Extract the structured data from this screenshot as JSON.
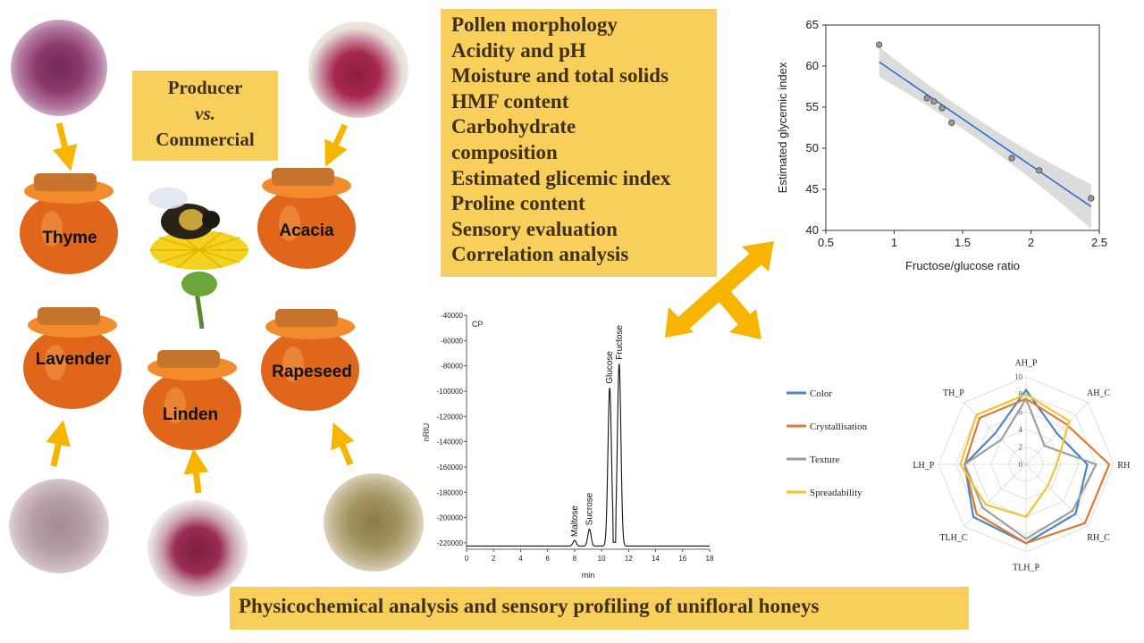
{
  "producer_box": {
    "line1": "Producer",
    "line2": "vs.",
    "line3": "Commercial"
  },
  "analyses": [
    "Pollen morphology",
    "Acidity and pH",
    "Moisture and total solids",
    "HMF content",
    "Carbohydrate",
    "composition",
    "Estimated glicemic index",
    "Proline content",
    "Sensory evaluation",
    "Correlation analysis"
  ],
  "honeys": [
    "Thyme",
    "Acacia",
    "Lavender",
    "Rapeseed",
    "Linden"
  ],
  "footer": "Physicochemical analysis and sensory profiling of unifloral honeys",
  "colors": {
    "box": "#f9cf5b",
    "arrow": "#f7b500",
    "honey": "#e0661c"
  },
  "chart_data": [
    {
      "type": "scatter",
      "xlabel": "Fructose/glucose ratio",
      "ylabel": "Estimated glycemic index",
      "xlim": [
        0.5,
        2.5
      ],
      "ylim": [
        40,
        65
      ],
      "xticks": [
        "0.5",
        "1",
        "1.5",
        "2",
        "2.5"
      ],
      "yticks": [
        "40",
        "45",
        "50",
        "55",
        "60",
        "65"
      ],
      "points": [
        [
          0.89,
          62.6
        ],
        [
          1.24,
          56.1
        ],
        [
          1.29,
          55.7
        ],
        [
          1.35,
          54.9
        ],
        [
          1.42,
          53.1
        ],
        [
          1.86,
          48.8
        ],
        [
          2.06,
          47.3
        ],
        [
          2.44,
          43.9
        ]
      ],
      "fit": [
        [
          0.89,
          60.5
        ],
        [
          2.44,
          42.9
        ]
      ],
      "confidence_band": true
    },
    {
      "type": "line",
      "label": "CP",
      "xlabel": "min",
      "ylabel": "nRIU",
      "xlim": [
        0,
        18
      ],
      "ylim": [
        -225000,
        -40000
      ],
      "xticks": [
        "0",
        "2",
        "4",
        "6",
        "8",
        "10",
        "12",
        "14",
        "16",
        "18"
      ],
      "yticks": [
        "-40000",
        "-60000",
        "-80000",
        "-100000",
        "-120000",
        "-140000",
        "-160000",
        "-180000",
        "-200000",
        "-220000"
      ],
      "baseline": -222500,
      "peaks": [
        {
          "name": "Maltose",
          "x": 8.0,
          "y": -218000
        },
        {
          "name": "Sucrose",
          "x": 9.1,
          "y": -209000
        },
        {
          "name": "Glucose",
          "x": 10.6,
          "y": -97000
        },
        {
          "name": "Fructose",
          "x": 11.3,
          "y": -78000
        }
      ]
    },
    {
      "type": "radar",
      "axes": [
        "AH_P",
        "AH_C",
        "RH_P",
        "RH_C",
        "TLH_P",
        "TLH_C",
        "LH_P",
        "TH_P"
      ],
      "rticks": [
        "0",
        "2",
        "4",
        "6",
        "8",
        "10"
      ],
      "rlim": [
        0,
        10
      ],
      "series": [
        {
          "name": "Color",
          "color": "#4a86c6",
          "values": [
            8.5,
            5,
            7,
            8,
            9,
            8.5,
            7,
            5
          ]
        },
        {
          "name": "Crystallisation",
          "color": "#e07a33",
          "values": [
            7.5,
            6.5,
            9.5,
            9.5,
            9,
            8,
            7,
            7.5
          ]
        },
        {
          "name": "Texture",
          "color": "#9e9e9e",
          "values": [
            7.5,
            3,
            8,
            7.5,
            8.5,
            7,
            7,
            4
          ]
        },
        {
          "name": "Spreadability",
          "color": "#f5c32c",
          "values": [
            8,
            7,
            3.5,
            3.5,
            6,
            6.5,
            7.5,
            8
          ]
        }
      ]
    }
  ]
}
